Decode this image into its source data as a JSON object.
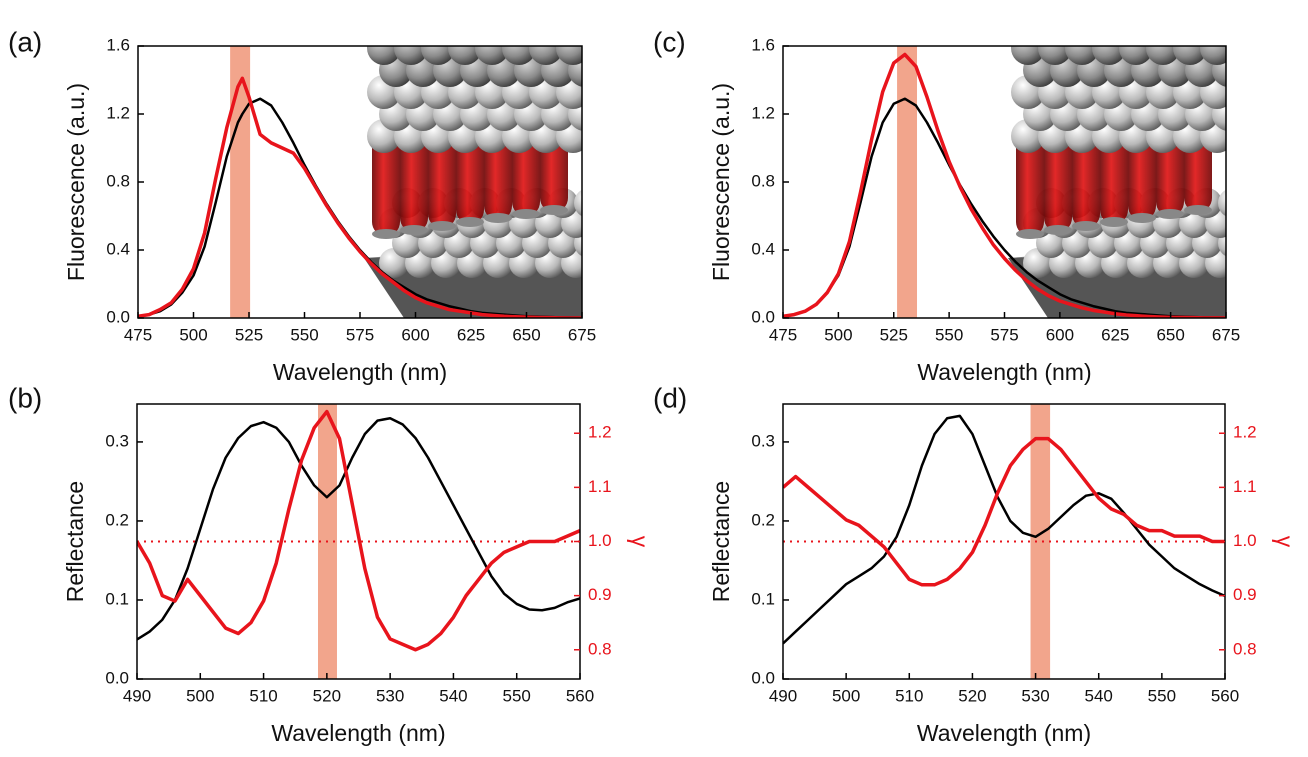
{
  "chart_data": [
    {
      "type": "line",
      "panel_label": "(a)",
      "x_label": "Wavelength (nm)",
      "y_label": "Fluorescence (a.u.)",
      "x": [
        475,
        480,
        485,
        490,
        495,
        500,
        505,
        510,
        515,
        520,
        522,
        525,
        530,
        535,
        540,
        545,
        550,
        555,
        560,
        565,
        570,
        575,
        580,
        585,
        590,
        595,
        600,
        605,
        610,
        615,
        620,
        625,
        630,
        635,
        640,
        645,
        650,
        655,
        660,
        665,
        670,
        675
      ],
      "series": [
        {
          "color": "#000000",
          "values": [
            0.01,
            0.02,
            0.04,
            0.08,
            0.15,
            0.25,
            0.42,
            0.68,
            0.95,
            1.15,
            1.2,
            1.26,
            1.29,
            1.25,
            1.15,
            1.03,
            0.9,
            0.78,
            0.67,
            0.57,
            0.48,
            0.4,
            0.33,
            0.27,
            0.22,
            0.18,
            0.14,
            0.11,
            0.09,
            0.07,
            0.055,
            0.04,
            0.03,
            0.025,
            0.02,
            0.015,
            0.01,
            0.008,
            0.006,
            0.004,
            0.003,
            0.002
          ]
        },
        {
          "color": "#e8141c",
          "values": [
            0.01,
            0.02,
            0.05,
            0.09,
            0.17,
            0.29,
            0.5,
            0.82,
            1.12,
            1.36,
            1.41,
            1.3,
            1.08,
            1.03,
            1.0,
            0.97,
            0.88,
            0.77,
            0.66,
            0.56,
            0.47,
            0.39,
            0.32,
            0.26,
            0.21,
            0.16,
            0.12,
            0.09,
            0.07,
            0.05,
            0.04,
            0.03,
            0.02,
            0.015,
            0.01,
            0.007,
            0.005,
            0.003,
            0.002,
            0.001,
            0,
            0
          ]
        }
      ],
      "highlight": [
        516.5,
        525.5
      ],
      "highlight_color": "#f2a58c",
      "xlim": [
        475,
        675
      ],
      "xticks": [
        475,
        500,
        525,
        550,
        575,
        600,
        625,
        650,
        675
      ],
      "ylim": [
        0,
        1.6
      ],
      "yticks": [
        {
          "value": 0,
          "label": "0.0"
        },
        0.4,
        0.8,
        1.2,
        1.6
      ]
    },
    {
      "type": "line",
      "panel_label": "(b)",
      "x_label": "Wavelength (nm)",
      "y_label": "Reflectance",
      "y2_label": "γ",
      "x": [
        490,
        492,
        494,
        496,
        498,
        500,
        502,
        504,
        506,
        508,
        510,
        512,
        514,
        516,
        518,
        520,
        522,
        524,
        526,
        528,
        530,
        532,
        534,
        536,
        538,
        540,
        542,
        544,
        546,
        548,
        550,
        552,
        554,
        556,
        558,
        560
      ],
      "series": [
        {
          "color": "#000000",
          "values": [
            0.05,
            0.06,
            0.075,
            0.1,
            0.14,
            0.19,
            0.24,
            0.28,
            0.305,
            0.32,
            0.325,
            0.318,
            0.3,
            0.27,
            0.245,
            0.23,
            0.245,
            0.28,
            0.31,
            0.327,
            0.33,
            0.322,
            0.305,
            0.28,
            0.25,
            0.22,
            0.19,
            0.16,
            0.13,
            0.108,
            0.095,
            0.088,
            0.087,
            0.09,
            0.097,
            0.102
          ]
        },
        {
          "color": "#e8141c",
          "axis": "y2",
          "values": [
            1.0,
            0.96,
            0.9,
            0.89,
            0.93,
            0.9,
            0.87,
            0.84,
            0.83,
            0.85,
            0.89,
            0.96,
            1.06,
            1.15,
            1.21,
            1.24,
            1.19,
            1.07,
            0.95,
            0.86,
            0.82,
            0.81,
            0.8,
            0.81,
            0.83,
            0.86,
            0.9,
            0.93,
            0.96,
            0.98,
            0.99,
            1.0,
            1.0,
            1.0,
            1.01,
            1.02
          ]
        }
      ],
      "highlight": [
        518.6,
        521.6
      ],
      "highlight_color": "#f2a58c",
      "y2ref": 1.0,
      "y2ref_color": "#e8141c",
      "xlim": [
        490,
        560
      ],
      "xticks": [
        490,
        500,
        510,
        520,
        530,
        540,
        550,
        560
      ],
      "ylim": [
        0,
        0.348
      ],
      "yticks": [
        {
          "value": 0,
          "label": "0.0"
        },
        0.1,
        0.2,
        0.3
      ],
      "y2lim": [
        0.746,
        1.254
      ],
      "y2ticks": [
        0.8,
        0.9,
        {
          "value": 1,
          "label": "1.0"
        },
        1.1,
        1.2
      ],
      "y2color": "#e8141c"
    },
    {
      "type": "line",
      "panel_label": "(c)",
      "x_label": "Wavelength (nm)",
      "y_label": "Fluorescence (a.u.)",
      "x": [
        475,
        480,
        485,
        490,
        495,
        500,
        505,
        510,
        515,
        520,
        525,
        530,
        535,
        540,
        545,
        550,
        555,
        560,
        565,
        570,
        575,
        580,
        585,
        590,
        595,
        600,
        605,
        610,
        615,
        620,
        625,
        630,
        635,
        640,
        645,
        650,
        655,
        660,
        665,
        670,
        675
      ],
      "series": [
        {
          "color": "#000000",
          "values": [
            0.01,
            0.02,
            0.04,
            0.08,
            0.15,
            0.25,
            0.42,
            0.68,
            0.95,
            1.15,
            1.26,
            1.29,
            1.25,
            1.15,
            1.03,
            0.9,
            0.78,
            0.67,
            0.57,
            0.48,
            0.4,
            0.33,
            0.27,
            0.22,
            0.18,
            0.14,
            0.11,
            0.09,
            0.07,
            0.055,
            0.04,
            0.03,
            0.025,
            0.02,
            0.015,
            0.01,
            0.008,
            0.006,
            0.004,
            0.003,
            0.002
          ]
        },
        {
          "color": "#e8141c",
          "values": [
            0.01,
            0.02,
            0.04,
            0.08,
            0.15,
            0.26,
            0.45,
            0.74,
            1.05,
            1.33,
            1.5,
            1.55,
            1.48,
            1.3,
            1.1,
            0.92,
            0.77,
            0.64,
            0.53,
            0.43,
            0.35,
            0.28,
            0.22,
            0.17,
            0.13,
            0.1,
            0.08,
            0.06,
            0.045,
            0.035,
            0.025,
            0.018,
            0.013,
            0.009,
            0.006,
            0.004,
            0.003,
            0.002,
            0.001,
            0.001,
            0
          ]
        }
      ],
      "highlight": [
        526.5,
        535.5
      ],
      "highlight_color": "#f2a58c",
      "xlim": [
        475,
        675
      ],
      "xticks": [
        475,
        500,
        525,
        550,
        575,
        600,
        625,
        650,
        675
      ],
      "ylim": [
        0,
        1.6
      ],
      "yticks": [
        {
          "value": 0,
          "label": "0.0"
        },
        0.4,
        0.8,
        1.2,
        1.6
      ]
    },
    {
      "type": "line",
      "panel_label": "(d)",
      "x_label": "Wavelength (nm)",
      "y_label": "Reflectance",
      "y2_label": "γ",
      "x": [
        490,
        492,
        494,
        496,
        498,
        500,
        502,
        504,
        506,
        508,
        510,
        512,
        514,
        516,
        518,
        520,
        522,
        524,
        526,
        528,
        530,
        532,
        534,
        536,
        538,
        540,
        542,
        544,
        546,
        548,
        550,
        552,
        554,
        556,
        558,
        560
      ],
      "series": [
        {
          "color": "#000000",
          "values": [
            0.045,
            0.06,
            0.075,
            0.09,
            0.105,
            0.12,
            0.13,
            0.14,
            0.155,
            0.18,
            0.22,
            0.27,
            0.31,
            0.33,
            0.333,
            0.31,
            0.27,
            0.23,
            0.2,
            0.185,
            0.18,
            0.19,
            0.205,
            0.22,
            0.232,
            0.235,
            0.228,
            0.21,
            0.19,
            0.17,
            0.155,
            0.14,
            0.13,
            0.12,
            0.112,
            0.105
          ]
        },
        {
          "color": "#e8141c",
          "axis": "y2",
          "values": [
            1.1,
            1.12,
            1.1,
            1.08,
            1.06,
            1.04,
            1.03,
            1.01,
            0.99,
            0.96,
            0.93,
            0.92,
            0.92,
            0.93,
            0.95,
            0.98,
            1.03,
            1.09,
            1.14,
            1.17,
            1.19,
            1.19,
            1.17,
            1.14,
            1.11,
            1.08,
            1.06,
            1.05,
            1.03,
            1.02,
            1.02,
            1.01,
            1.01,
            1.01,
            1.0,
            1.0
          ]
        }
      ],
      "highlight": [
        529.2,
        532.3
      ],
      "highlight_color": "#f2a58c",
      "y2ref": 1.0,
      "y2ref_color": "#e8141c",
      "xlim": [
        490,
        560
      ],
      "xticks": [
        490,
        500,
        510,
        520,
        530,
        540,
        550,
        560
      ],
      "ylim": [
        0,
        0.348
      ],
      "yticks": [
        {
          "value": 0,
          "label": "0.0"
        },
        0.1,
        0.2,
        0.3
      ],
      "y2lim": [
        0.746,
        1.254
      ],
      "y2ticks": [
        0.8,
        0.9,
        {
          "value": 1,
          "label": "1.0"
        },
        1.1,
        1.2
      ],
      "y2color": "#e8141c"
    }
  ]
}
